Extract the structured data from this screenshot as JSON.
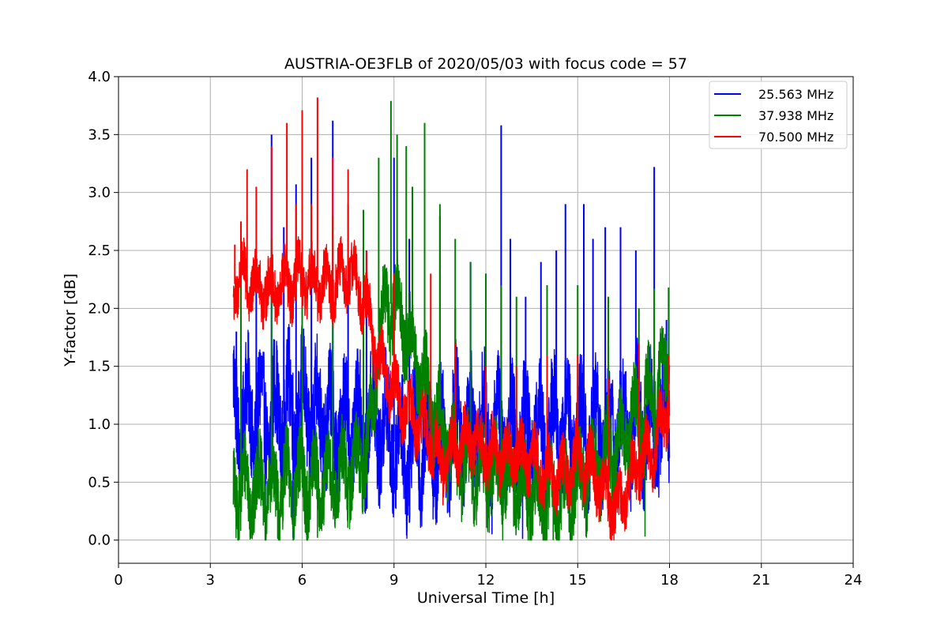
{
  "chart_data": {
    "type": "line",
    "title": "AUSTRIA-OE3FLB of 2020/05/03 with focus code = 57",
    "xlabel": "Universal Time [h]",
    "ylabel": "Y-factor [dB]",
    "xlim": [
      0,
      24
    ],
    "ylim": [
      -0.2,
      4.0
    ],
    "xticks": [
      0,
      3,
      6,
      9,
      12,
      15,
      18,
      21,
      24
    ],
    "xtick_labels": [
      "0",
      "3",
      "6",
      "9",
      "12",
      "15",
      "18",
      "21",
      "24"
    ],
    "yticks": [
      0.0,
      0.5,
      1.0,
      1.5,
      2.0,
      2.5,
      3.0,
      3.5,
      4.0
    ],
    "ytick_labels": [
      "0.0",
      "0.5",
      "1.0",
      "1.5",
      "2.0",
      "2.5",
      "3.0",
      "3.5",
      "4.0"
    ],
    "grid": true,
    "legend_position": "top-right",
    "series": [
      {
        "name": "25.563 MHz",
        "color": "#0000ff",
        "baseline": [
          [
            3.75,
            1.1
          ],
          [
            5,
            1.05
          ],
          [
            6,
            1.15
          ],
          [
            7,
            1.0
          ],
          [
            8,
            0.95
          ],
          [
            8.5,
            1.0
          ],
          [
            9,
            0.85
          ],
          [
            9.5,
            0.75
          ],
          [
            10,
            0.85
          ],
          [
            10.5,
            0.8
          ],
          [
            11,
            1.0
          ],
          [
            12,
            0.95
          ],
          [
            13,
            0.9
          ],
          [
            14,
            0.95
          ],
          [
            15,
            0.95
          ],
          [
            16,
            0.95
          ],
          [
            17,
            1.0
          ],
          [
            18,
            1.05
          ]
        ],
        "noise_amplitude": 0.7,
        "spikes": [
          [
            3.85,
            1.8
          ],
          [
            4.5,
            2.2
          ],
          [
            5.0,
            3.5
          ],
          [
            5.4,
            2.7
          ],
          [
            5.8,
            3.07
          ],
          [
            6.3,
            3.3
          ],
          [
            7.0,
            3.62
          ],
          [
            7.5,
            2.9
          ],
          [
            8.1,
            2.5
          ],
          [
            9.0,
            3.3
          ],
          [
            9.5,
            2.6
          ],
          [
            10.0,
            2.5
          ],
          [
            10.5,
            2.8
          ],
          [
            11.0,
            2.0
          ],
          [
            11.5,
            2.4
          ],
          [
            12.0,
            2.3
          ],
          [
            12.5,
            3.58
          ],
          [
            12.8,
            2.6
          ],
          [
            13.3,
            2.1
          ],
          [
            13.8,
            2.4
          ],
          [
            14.3,
            2.5
          ],
          [
            14.6,
            2.9
          ],
          [
            15.2,
            2.9
          ],
          [
            15.5,
            2.6
          ],
          [
            15.9,
            2.7
          ],
          [
            16.4,
            2.7
          ],
          [
            16.9,
            2.5
          ],
          [
            17.5,
            3.22
          ],
          [
            17.9,
            1.9
          ]
        ],
        "dips": [
          [
            4.8,
            0.01
          ],
          [
            5.7,
            0.02
          ],
          [
            9.5,
            0.15
          ],
          [
            10.4,
            0.15
          ],
          [
            12.2,
            0.05
          ],
          [
            13.2,
            0.01
          ]
        ]
      },
      {
        "name": "37.938 MHz",
        "color": "#008000",
        "baseline": [
          [
            3.75,
            0.45
          ],
          [
            5,
            0.45
          ],
          [
            6,
            0.5
          ],
          [
            7,
            0.5
          ],
          [
            7.5,
            0.6
          ],
          [
            8,
            0.7
          ],
          [
            8.3,
            1.0
          ],
          [
            8.5,
            1.8
          ],
          [
            9.0,
            2.1
          ],
          [
            9.5,
            1.7
          ],
          [
            10,
            1.3
          ],
          [
            10.5,
            1.0
          ],
          [
            11,
            0.7
          ],
          [
            12,
            0.55
          ],
          [
            13,
            0.5
          ],
          [
            13.5,
            0.4
          ],
          [
            14,
            0.35
          ],
          [
            14.5,
            0.35
          ],
          [
            15,
            0.5
          ],
          [
            15.5,
            0.6
          ],
          [
            16,
            0.75
          ],
          [
            16.5,
            0.9
          ],
          [
            17,
            1.1
          ],
          [
            17.5,
            1.3
          ],
          [
            18,
            1.5
          ]
        ],
        "noise_amplitude": 0.5,
        "spikes": [
          [
            4.0,
            2.3
          ],
          [
            5.0,
            2.6
          ],
          [
            6.0,
            2.8
          ],
          [
            7.0,
            2.8
          ],
          [
            8.0,
            2.85
          ],
          [
            8.5,
            3.3
          ],
          [
            8.9,
            3.79
          ],
          [
            9.1,
            3.5
          ],
          [
            9.4,
            3.4
          ],
          [
            9.6,
            3.05
          ],
          [
            10.0,
            3.6
          ],
          [
            10.5,
            2.9
          ],
          [
            11.0,
            2.6
          ],
          [
            11.5,
            2.4
          ],
          [
            12.0,
            2.3
          ],
          [
            12.5,
            2.2
          ],
          [
            13.0,
            2.1
          ],
          [
            14.0,
            2.2
          ],
          [
            15.0,
            2.2
          ],
          [
            16.0,
            2.1
          ],
          [
            17.0,
            2.0
          ],
          [
            17.5,
            2.17
          ],
          [
            17.97,
            2.18
          ]
        ],
        "dips": [
          [
            4.3,
            0.03
          ],
          [
            5.2,
            0.01
          ],
          [
            6.5,
            0.02
          ],
          [
            14.2,
            0.0
          ],
          [
            17.2,
            0.03
          ]
        ]
      },
      {
        "name": "70.500 MHz",
        "color": "#ff0000",
        "baseline": [
          [
            3.75,
            2.2
          ],
          [
            4,
            2.25
          ],
          [
            5,
            2.15
          ],
          [
            6,
            2.25
          ],
          [
            7,
            2.2
          ],
          [
            7.5,
            2.3
          ],
          [
            7.9,
            2.2
          ],
          [
            8.2,
            1.9
          ],
          [
            8.5,
            1.55
          ],
          [
            9,
            1.3
          ],
          [
            9.5,
            1.1
          ],
          [
            10,
            0.95
          ],
          [
            10.5,
            0.7
          ],
          [
            11,
            0.8
          ],
          [
            11.5,
            0.9
          ],
          [
            12,
            0.75
          ],
          [
            13,
            0.75
          ],
          [
            13.5,
            0.7
          ],
          [
            14,
            0.55
          ],
          [
            14.5,
            0.55
          ],
          [
            15,
            0.7
          ],
          [
            15.5,
            0.6
          ],
          [
            16,
            0.35
          ],
          [
            16.3,
            0.25
          ],
          [
            16.7,
            0.5
          ],
          [
            17,
            0.65
          ],
          [
            17.5,
            0.8
          ],
          [
            18,
            1.2
          ]
        ],
        "noise_amplitude": 0.35,
        "spikes": [
          [
            3.8,
            2.55
          ],
          [
            4.0,
            2.75
          ],
          [
            4.2,
            3.2
          ],
          [
            4.5,
            3.05
          ],
          [
            5.0,
            3.4
          ],
          [
            5.5,
            3.6
          ],
          [
            5.8,
            2.9
          ],
          [
            6.0,
            3.71
          ],
          [
            6.3,
            2.9
          ],
          [
            6.5,
            3.82
          ],
          [
            7.0,
            3.3
          ],
          [
            7.5,
            3.2
          ],
          [
            8.1,
            2.5
          ],
          [
            9.0,
            2.3
          ],
          [
            10.2,
            2.3
          ],
          [
            11.0,
            1.7
          ],
          [
            12.0,
            1.5
          ],
          [
            13.0,
            1.5
          ],
          [
            14.0,
            1.6
          ],
          [
            15.0,
            1.6
          ],
          [
            16.0,
            1.4
          ],
          [
            17.0,
            1.7
          ],
          [
            17.97,
            1.6
          ]
        ],
        "dips": [
          [
            10.6,
            0.3
          ],
          [
            16.2,
            0.08
          ]
        ]
      }
    ]
  }
}
